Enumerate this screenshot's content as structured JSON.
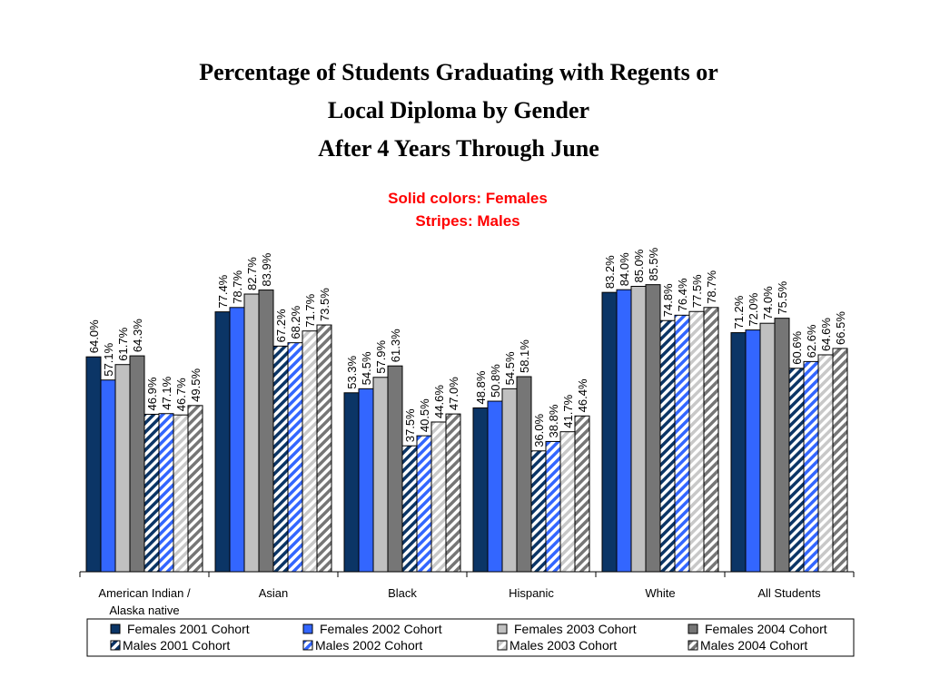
{
  "chart_data": {
    "type": "bar",
    "title": [
      "Percentage of Students Graduating with Regents or",
      "Local Diploma by Gender",
      "After 4 Years Through June"
    ],
    "subtitle": [
      "Solid colors: Females",
      "Stripes: Males"
    ],
    "categories": [
      "American Indian / Alaska native",
      "Asian",
      "Black",
      "Hispanic",
      "White",
      "All Students"
    ],
    "ylim": [
      0,
      100
    ],
    "series": [
      {
        "name": "Females 2001 Cohort",
        "color": "#0b3566",
        "fill": "solid",
        "values": [
          64.0,
          77.4,
          53.3,
          48.8,
          83.2,
          71.2
        ],
        "value_labels": [
          "64.0%",
          "77.4%",
          "53.3%",
          "48.8%",
          "83.2%",
          "71.2%"
        ]
      },
      {
        "name": "Females 2002 Cohort",
        "color": "#3366ff",
        "fill": "solid",
        "values": [
          57.1,
          78.7,
          54.5,
          50.8,
          84.0,
          72.0
        ],
        "value_labels": [
          "57.1%",
          "78.7%",
          "54.5%",
          "50.8%",
          "84.0%",
          "72.0%"
        ]
      },
      {
        "name": "Females 2003 Cohort",
        "color": "#c0c0c0",
        "fill": "solid",
        "values": [
          61.7,
          82.7,
          57.9,
          54.5,
          85.0,
          74.0
        ],
        "value_labels": [
          "61.7%",
          "82.7%",
          "57.9%",
          "54.5%",
          "85.0%",
          "74.0%"
        ]
      },
      {
        "name": "Females 2004 Cohort",
        "color": "#767676",
        "fill": "solid",
        "values": [
          64.3,
          83.9,
          61.3,
          58.1,
          85.5,
          75.5
        ],
        "value_labels": [
          "64.3%",
          "83.9%",
          "61.3%",
          "58.1%",
          "85.5%",
          "75.5%"
        ]
      },
      {
        "name": "Males 2001 Cohort",
        "color": "#0b3566",
        "fill": "stripes",
        "values": [
          46.9,
          67.2,
          37.5,
          36.0,
          74.8,
          60.6
        ],
        "value_labels": [
          "46.9%",
          "67.2%",
          "37.5%",
          "36.0%",
          "74.8%",
          "60.6%"
        ]
      },
      {
        "name": "Males 2002 Cohort",
        "color": "#3366ff",
        "fill": "stripes",
        "values": [
          47.1,
          68.2,
          40.5,
          38.8,
          76.4,
          62.6
        ],
        "value_labels": [
          "47.1%",
          "68.2%",
          "40.5%",
          "38.8%",
          "76.4%",
          "62.6%"
        ]
      },
      {
        "name": "Males 2003 Cohort",
        "color": "#c8c8c8",
        "fill": "stripes",
        "values": [
          46.7,
          71.7,
          44.6,
          41.7,
          77.5,
          64.6
        ],
        "value_labels": [
          "46.7%",
          "71.7%",
          "44.6%",
          "41.7%",
          "77.5%",
          "64.6%"
        ]
      },
      {
        "name": "Males 2004 Cohort",
        "color": "#767676",
        "fill": "stripes",
        "values": [
          49.5,
          73.5,
          47.0,
          46.4,
          78.7,
          66.5
        ],
        "value_labels": [
          "49.5%",
          "73.5%",
          "47.0%",
          "46.4%",
          "78.7%",
          "66.5%"
        ]
      }
    ]
  }
}
